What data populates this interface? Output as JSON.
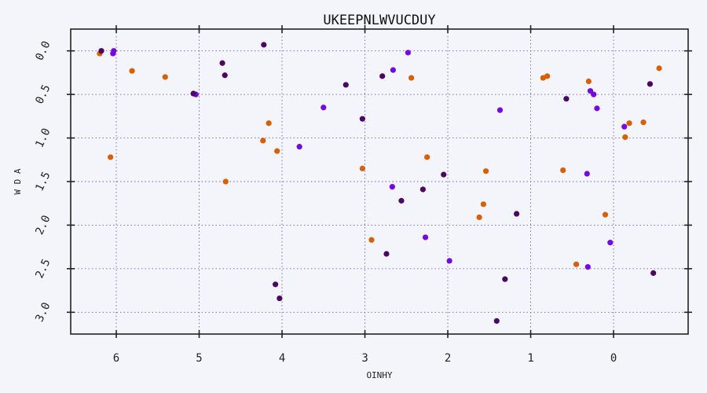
{
  "chart_data": {
    "type": "scatter",
    "title": "UKEEPNLWVUCDUY",
    "xlabel": "OINHY",
    "ylabel": "W D A",
    "xlim": [
      6.55,
      -0.9
    ],
    "ylim": [
      -0.25,
      3.25
    ],
    "x_inverted": true,
    "y_inverted": true,
    "xticks": [
      6,
      5,
      4,
      3,
      2,
      1,
      0
    ],
    "xtick_labels": [
      "6",
      "5",
      "4",
      "3",
      "2",
      "1",
      "0"
    ],
    "yticks": [
      0.0,
      0.5,
      1.0,
      1.5,
      2.0,
      2.5,
      3.0
    ],
    "ytick_labels": [
      "0.0",
      "0.5",
      "1.0",
      "1.5",
      "2.0",
      "2.5",
      "3.0"
    ],
    "grid": true,
    "series": [
      {
        "color": "#d95f02",
        "points": [
          [
            6.2,
            0.03
          ],
          [
            5.81,
            0.23
          ],
          [
            5.41,
            0.3
          ],
          [
            6.07,
            1.22
          ],
          [
            4.68,
            1.5
          ],
          [
            4.16,
            0.83
          ],
          [
            4.23,
            1.03
          ],
          [
            4.06,
            1.15
          ],
          [
            3.03,
            1.35
          ],
          [
            2.92,
            2.17
          ],
          [
            2.44,
            0.31
          ],
          [
            2.25,
            1.22
          ],
          [
            1.62,
            1.91
          ],
          [
            1.57,
            1.76
          ],
          [
            1.54,
            1.38
          ],
          [
            0.85,
            0.31
          ],
          [
            0.8,
            0.29
          ],
          [
            0.61,
            1.37
          ],
          [
            0.45,
            2.45
          ],
          [
            0.3,
            0.35
          ],
          [
            0.1,
            1.88
          ],
          [
            -0.14,
            0.99
          ],
          [
            -0.19,
            0.83
          ],
          [
            -0.36,
            0.82
          ],
          [
            -0.55,
            0.2
          ]
        ]
      },
      {
        "color": "#7409e3",
        "points": [
          [
            6.03,
            0.0
          ],
          [
            6.04,
            0.03
          ],
          [
            5.04,
            0.5
          ],
          [
            3.5,
            0.65
          ],
          [
            3.79,
            1.1
          ],
          [
            2.66,
            0.22
          ],
          [
            2.48,
            0.02
          ],
          [
            2.67,
            1.56
          ],
          [
            2.27,
            2.14
          ],
          [
            1.98,
            2.41
          ],
          [
            1.37,
            0.68
          ],
          [
            0.28,
            0.46
          ],
          [
            0.24,
            0.5
          ],
          [
            0.2,
            0.66
          ],
          [
            0.32,
            1.41
          ],
          [
            0.31,
            2.48
          ],
          [
            0.04,
            2.2
          ],
          [
            -0.13,
            0.87
          ]
        ]
      },
      {
        "color": "#4b0763",
        "points": [
          [
            6.18,
            0.0
          ],
          [
            5.07,
            0.49
          ],
          [
            4.72,
            0.14
          ],
          [
            4.69,
            0.28
          ],
          [
            4.22,
            -0.07
          ],
          [
            3.23,
            0.39
          ],
          [
            3.03,
            0.78
          ],
          [
            2.79,
            0.29
          ],
          [
            4.08,
            2.68
          ],
          [
            4.03,
            2.84
          ],
          [
            2.74,
            2.33
          ],
          [
            2.56,
            1.72
          ],
          [
            2.3,
            1.59
          ],
          [
            2.05,
            1.42
          ],
          [
            1.41,
            3.1
          ],
          [
            1.31,
            2.62
          ],
          [
            1.17,
            1.87
          ],
          [
            0.57,
            0.55
          ],
          [
            -0.44,
            0.38
          ],
          [
            -0.48,
            2.55
          ]
        ]
      }
    ]
  }
}
